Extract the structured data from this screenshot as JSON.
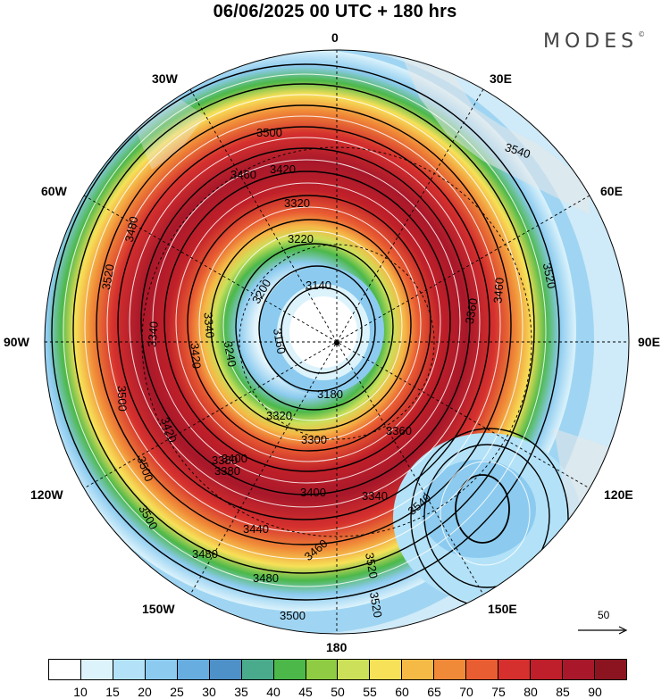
{
  "header": {
    "title": "06/06/2025  00 UTC  + 180 hrs",
    "brand": "MODES",
    "brand_mark": "©"
  },
  "map": {
    "projection": "south-polar-stereographic",
    "longitude_labels": {
      "top": "0",
      "top_left": "30W",
      "top_right": "30E",
      "upper_left": "60W",
      "upper_right": "60E",
      "left": "90W",
      "right": "90E",
      "lower_left": "120W",
      "lower_right": "120E",
      "bottom_left": "150W",
      "bottom_right": "150E",
      "bottom": "180"
    },
    "contour_labels": [
      "3500",
      "3540",
      "3460",
      "3420",
      "3320",
      "3220",
      "3140",
      "3200",
      "3160",
      "3180",
      "3240",
      "3320",
      "3380",
      "3420",
      "3480",
      "3520",
      "3520",
      "3500",
      "3460",
      "3400",
      "3360",
      "3340",
      "3300",
      "3420",
      "3380",
      "3400",
      "3440",
      "3480",
      "3480",
      "3500",
      "3520",
      "3540",
      "3520",
      "3460",
      "3360",
      "3340",
      "3500",
      "3340",
      "3500"
    ],
    "wind_vector_scale": {
      "label": "50",
      "icon": "arrow-right-icon"
    }
  },
  "colorbar": {
    "ticks": [
      "10",
      "15",
      "20",
      "25",
      "30",
      "35",
      "40",
      "45",
      "50",
      "55",
      "60",
      "65",
      "70",
      "75",
      "80",
      "85",
      "90"
    ],
    "colors": [
      "#ffffff",
      "#dcf3fc",
      "#b3e2f8",
      "#8ccbef",
      "#67ade0",
      "#4e90c8",
      "#4aaa8c",
      "#4cb84a",
      "#8fcc44",
      "#cce05a",
      "#f7e158",
      "#f5b946",
      "#f08a38",
      "#e95d32",
      "#d5302e",
      "#be1f2a",
      "#a8182a",
      "#8c1420"
    ]
  }
}
